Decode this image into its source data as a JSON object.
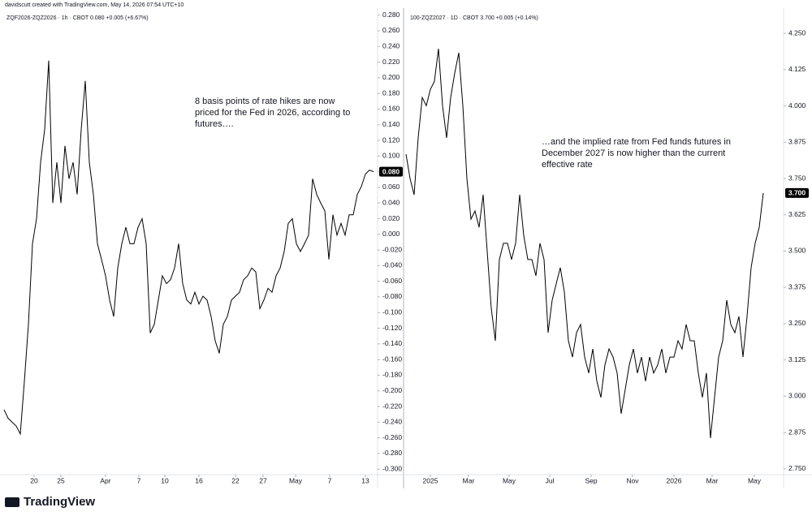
{
  "header": {
    "credit": "davidscutt created with TradingView.com, May 14, 2026 07:54 UTC+10"
  },
  "footer": {
    "brand": "TradingView"
  },
  "chart_data": [
    {
      "type": "line",
      "legend": "ZQF2026-ZQZ2026 · 1h · CBOT  0.080  +0.005 (+6.67%)",
      "annotation": "8 basis points of rate hikes are now priced for the Fed in 2026, according to futures….",
      "price_label": "0.080",
      "color": "#000000",
      "grid": false,
      "values": [
        -0.224,
        -0.235,
        -0.24,
        -0.245,
        -0.255,
        -0.188,
        -0.115,
        -0.012,
        0.02,
        0.092,
        0.134,
        0.222,
        0.04,
        0.092,
        0.04,
        0.113,
        0.071,
        0.092,
        0.051,
        0.134,
        0.196,
        0.092,
        0.051,
        -0.012,
        -0.032,
        -0.053,
        -0.084,
        -0.105,
        -0.043,
        -0.012,
        0.009,
        -0.012,
        -0.012,
        0.009,
        0.02,
        -0.012,
        -0.126,
        -0.115,
        -0.084,
        -0.053,
        -0.063,
        -0.058,
        -0.043,
        -0.012,
        -0.063,
        -0.084,
        -0.089,
        -0.074,
        -0.089,
        -0.079,
        -0.084,
        -0.105,
        -0.136,
        -0.152,
        -0.115,
        -0.105,
        -0.084,
        -0.079,
        -0.074,
        -0.058,
        -0.053,
        -0.043,
        -0.048,
        -0.095,
        -0.084,
        -0.069,
        -0.074,
        -0.053,
        -0.043,
        -0.022,
        0.014,
        0.02,
        -0.012,
        -0.022,
        -0.012,
        -0.001,
        0.071,
        0.051,
        0.04,
        0.03,
        -0.032,
        0.025,
        -0.001,
        0.014,
        -0.001,
        0.025,
        0.025,
        0.051,
        0.061,
        0.077,
        0.082,
        0.08
      ],
      "xlim": [
        -1,
        92
      ],
      "xticks": [
        {
          "value": 7.4,
          "label": "20"
        },
        {
          "value": 14,
          "label": "25"
        },
        {
          "value": 25,
          "label": "Apr"
        },
        {
          "value": 33.2,
          "label": "7"
        },
        {
          "value": 39.6,
          "label": "10"
        },
        {
          "value": 48,
          "label": "16"
        },
        {
          "value": 57,
          "label": "22"
        },
        {
          "value": 63.8,
          "label": "27"
        },
        {
          "value": 71.8,
          "label": "May"
        },
        {
          "value": 80.2,
          "label": "7"
        },
        {
          "value": 89,
          "label": "13"
        }
      ],
      "ylim": [
        -0.307,
        0.289
      ],
      "yticks": [
        {
          "value": 0.28,
          "label": "0.280"
        },
        {
          "value": 0.26,
          "label": "0.260"
        },
        {
          "value": 0.24,
          "label": "0.240"
        },
        {
          "value": 0.22,
          "label": "0.220"
        },
        {
          "value": 0.2,
          "label": "0.200"
        },
        {
          "value": 0.18,
          "label": "0.180"
        },
        {
          "value": 0.16,
          "label": "0.160"
        },
        {
          "value": 0.14,
          "label": "0.140"
        },
        {
          "value": 0.12,
          "label": "0.120"
        },
        {
          "value": 0.1,
          "label": "0.100"
        },
        {
          "value": 0.08,
          "label": "0.080"
        },
        {
          "value": 0.06,
          "label": "0.060"
        },
        {
          "value": 0.04,
          "label": "0.040"
        },
        {
          "value": 0.02,
          "label": "0.020"
        },
        {
          "value": 0,
          "label": "0.000"
        },
        {
          "value": -0.02,
          "label": "-0.020"
        },
        {
          "value": -0.04,
          "label": "-0.040"
        },
        {
          "value": -0.06,
          "label": "-0.060"
        },
        {
          "value": -0.08,
          "label": "-0.080"
        },
        {
          "value": -0.1,
          "label": "-0.100"
        },
        {
          "value": -0.12,
          "label": "-0.120"
        },
        {
          "value": -0.14,
          "label": "-0.140"
        },
        {
          "value": -0.16,
          "label": "-0.160"
        },
        {
          "value": -0.18,
          "label": "-0.180"
        },
        {
          "value": -0.2,
          "label": "-0.200"
        },
        {
          "value": -0.22,
          "label": "-0.220"
        },
        {
          "value": -0.24,
          "label": "-0.240"
        },
        {
          "value": -0.26,
          "label": "-0.260"
        },
        {
          "value": -0.28,
          "label": "-0.280"
        },
        {
          "value": -0.3,
          "label": "-0.300"
        }
      ]
    },
    {
      "type": "line",
      "legend": "100-ZQZ2027 · 1D · CBOT  3.700  +0.005 (+0.14%)",
      "annotation": "…and the implied rate from Fed funds futures in December 2027 is now higher than the current effective rate",
      "price_label": "3.700",
      "color": "#000000",
      "grid": false,
      "values": [
        3.834,
        3.75,
        3.694,
        3.89,
        4.029,
        4.001,
        4.057,
        4.085,
        4.197,
        4.001,
        3.89,
        4.029,
        4.113,
        4.183,
        4.001,
        3.75,
        3.61,
        3.638,
        3.582,
        3.694,
        3.499,
        3.303,
        3.191,
        3.471,
        3.527,
        3.527,
        3.471,
        3.527,
        3.694,
        3.554,
        3.471,
        3.471,
        3.415,
        3.527,
        3.471,
        3.219,
        3.331,
        3.387,
        3.443,
        3.359,
        3.191,
        3.135,
        3.219,
        3.247,
        3.135,
        3.08,
        3.163,
        3.052,
        2.996,
        3.108,
        3.163,
        3.135,
        3.08,
        2.94,
        3.024,
        3.108,
        3.163,
        3.08,
        3.135,
        3.052,
        3.135,
        3.08,
        3.108,
        3.163,
        3.08,
        3.135,
        3.135,
        3.191,
        3.163,
        3.247,
        3.191,
        3.191,
        3.08,
        2.996,
        3.08,
        2.856,
        2.996,
        3.135,
        3.191,
        3.331,
        3.247,
        3.219,
        3.275,
        3.135,
        3.275,
        3.443,
        3.527,
        3.582,
        3.7
      ],
      "xlim": [
        0,
        93
      ],
      "xticks": [
        {
          "value": 6,
          "label": "2025"
        },
        {
          "value": 15.4,
          "label": "Mar"
        },
        {
          "value": 25.4,
          "label": "May"
        },
        {
          "value": 35.4,
          "label": "Jul"
        },
        {
          "value": 45.6,
          "label": "Sep"
        },
        {
          "value": 55.8,
          "label": "Nov"
        },
        {
          "value": 66,
          "label": "2026"
        },
        {
          "value": 75.4,
          "label": "Mar"
        },
        {
          "value": 85.8,
          "label": "May"
        }
      ],
      "ylim": [
        2.73,
        4.337
      ],
      "yticks": [
        {
          "value": 4.25,
          "label": "4.250"
        },
        {
          "value": 4.125,
          "label": "4.125"
        },
        {
          "value": 4,
          "label": "4.000"
        },
        {
          "value": 3.875,
          "label": "3.875"
        },
        {
          "value": 3.75,
          "label": "3.750"
        },
        {
          "value": 3.625,
          "label": "3.625"
        },
        {
          "value": 3.5,
          "label": "3.500"
        },
        {
          "value": 3.375,
          "label": "3.375"
        },
        {
          "value": 3.25,
          "label": "3.250"
        },
        {
          "value": 3.125,
          "label": "3.125"
        },
        {
          "value": 3,
          "label": "3.000"
        },
        {
          "value": 2.875,
          "label": "2.875"
        },
        {
          "value": 2.75,
          "label": "2.750"
        }
      ]
    }
  ]
}
